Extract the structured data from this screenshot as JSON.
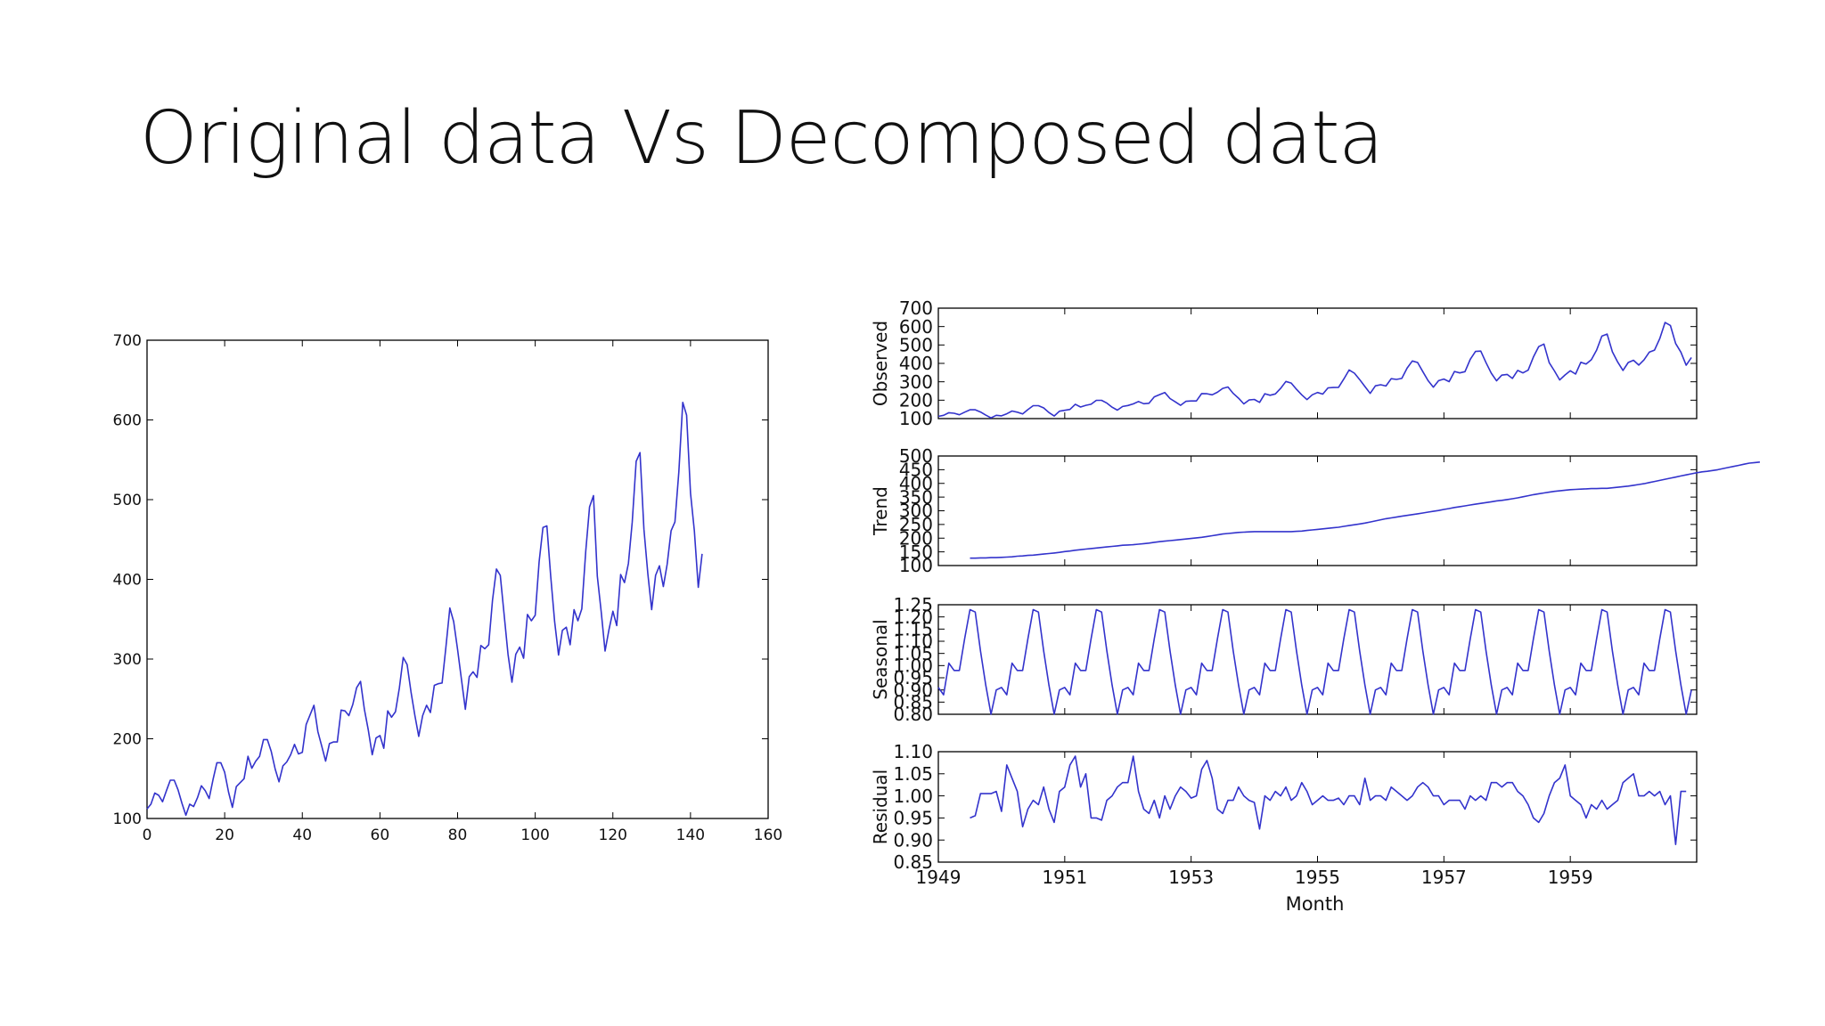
{
  "slide": {
    "title": "Original data Vs Decomposed data"
  },
  "chart_data": [
    {
      "type": "line",
      "title": "",
      "xlabel": "",
      "ylabel": "",
      "xlim": [
        0,
        160
      ],
      "ylim": [
        100,
        700
      ],
      "xticks": [
        0,
        20,
        40,
        60,
        80,
        100,
        120,
        140,
        160
      ],
      "yticks": [
        100,
        200,
        300,
        400,
        500,
        600,
        700
      ],
      "grid": false,
      "line_color": "#3333cc",
      "series": [
        {
          "values": [
            112,
            118,
            132,
            129,
            121,
            135,
            148,
            148,
            136,
            119,
            104,
            118,
            115,
            126,
            141,
            135,
            125,
            149,
            170,
            170,
            158,
            133,
            114,
            140,
            145,
            150,
            178,
            163,
            172,
            178,
            199,
            199,
            184,
            162,
            146,
            166,
            171,
            180,
            193,
            181,
            183,
            218,
            230,
            242,
            209,
            191,
            172,
            194,
            196,
            196,
            236,
            235,
            229,
            243,
            264,
            272,
            237,
            211,
            180,
            201,
            204,
            188,
            235,
            227,
            234,
            264,
            302,
            293,
            259,
            229,
            203,
            229,
            242,
            233,
            267,
            269,
            270,
            315,
            364,
            347,
            312,
            274,
            237,
            278,
            284,
            277,
            317,
            313,
            318,
            374,
            413,
            405,
            355,
            306,
            271,
            306,
            315,
            301,
            356,
            348,
            355,
            422,
            465,
            467,
            404,
            347,
            305,
            336,
            340,
            318,
            362,
            348,
            363,
            435,
            491,
            505,
            404,
            359,
            310,
            337,
            360,
            342,
            406,
            396,
            420,
            472,
            548,
            559,
            463,
            407,
            362,
            405,
            417,
            391,
            419,
            461,
            472,
            535,
            622,
            606,
            508,
            461,
            390,
            432
          ]
        }
      ]
    },
    {
      "type": "line",
      "title": "",
      "xlabel": "Month",
      "ylabel": "Observed",
      "x_start": "1949-01",
      "x_frequency": "monthly",
      "xlim": [
        1949,
        1961
      ],
      "xticks": [
        "1949",
        "1951",
        "1953",
        "1955",
        "1957",
        "1959"
      ],
      "ylim": [
        100,
        700
      ],
      "yticks": [
        100,
        200,
        300,
        400,
        500,
        600,
        700
      ],
      "grid": false,
      "line_color": "#3333cc",
      "series": [
        {
          "values": [
            112,
            118,
            132,
            129,
            121,
            135,
            148,
            148,
            136,
            119,
            104,
            118,
            115,
            126,
            141,
            135,
            125,
            149,
            170,
            170,
            158,
            133,
            114,
            140,
            145,
            150,
            178,
            163,
            172,
            178,
            199,
            199,
            184,
            162,
            146,
            166,
            171,
            180,
            193,
            181,
            183,
            218,
            230,
            242,
            209,
            191,
            172,
            194,
            196,
            196,
            236,
            235,
            229,
            243,
            264,
            272,
            237,
            211,
            180,
            201,
            204,
            188,
            235,
            227,
            234,
            264,
            302,
            293,
            259,
            229,
            203,
            229,
            242,
            233,
            267,
            269,
            270,
            315,
            364,
            347,
            312,
            274,
            237,
            278,
            284,
            277,
            317,
            313,
            318,
            374,
            413,
            405,
            355,
            306,
            271,
            306,
            315,
            301,
            356,
            348,
            355,
            422,
            465,
            467,
            404,
            347,
            305,
            336,
            340,
            318,
            362,
            348,
            363,
            435,
            491,
            505,
            404,
            359,
            310,
            337,
            360,
            342,
            406,
            396,
            420,
            472,
            548,
            559,
            463,
            407,
            362,
            405,
            417,
            391,
            419,
            461,
            472,
            535,
            622,
            606,
            508,
            461,
            390,
            432
          ]
        }
      ]
    },
    {
      "type": "line",
      "title": "",
      "xlabel": "Month",
      "ylabel": "Trend",
      "x_start": "1949-07",
      "x_frequency": "monthly",
      "xlim": [
        1949,
        1961
      ],
      "ylim": [
        100,
        500
      ],
      "yticks": [
        100,
        150,
        200,
        250,
        300,
        350,
        400,
        450,
        500
      ],
      "grid": false,
      "line_color": "#3333cc",
      "series": [
        {
          "values": [
            127,
            127,
            128,
            128,
            129,
            129,
            130,
            131,
            132,
            134,
            135,
            137,
            138,
            140,
            142,
            144,
            146,
            148,
            151,
            153,
            156,
            158,
            160,
            162,
            164,
            166,
            168,
            170,
            172,
            174,
            175,
            176,
            178,
            180,
            182,
            185,
            187,
            189,
            191,
            193,
            195,
            197,
            199,
            201,
            203,
            206,
            209,
            212,
            215,
            217,
            219,
            221,
            222,
            223,
            224,
            224,
            224,
            224,
            224,
            224,
            224,
            224,
            225,
            226,
            228,
            230,
            232,
            234,
            236,
            238,
            240,
            243,
            246,
            249,
            252,
            255,
            259,
            263,
            267,
            271,
            274,
            277,
            280,
            283,
            286,
            289,
            292,
            295,
            298,
            301,
            305,
            308,
            312,
            315,
            318,
            321,
            324,
            327,
            330,
            333,
            336,
            338,
            341,
            344,
            347,
            351,
            355,
            359,
            362,
            365,
            368,
            371,
            373,
            375,
            377,
            378,
            379,
            380,
            381,
            381,
            382,
            382,
            384,
            386,
            388,
            390,
            393,
            396,
            399,
            403,
            407,
            411,
            415,
            419,
            423,
            427,
            431,
            435,
            439,
            442,
            444,
            447,
            450,
            454,
            458,
            462,
            466,
            470,
            474,
            476,
            478
          ]
        }
      ]
    },
    {
      "type": "line",
      "title": "",
      "xlabel": "Month",
      "ylabel": "Seasonal",
      "x_start": "1949-01",
      "x_frequency": "monthly",
      "period_values": [
        0.91,
        0.88,
        1.01,
        0.98,
        0.98,
        1.11,
        1.23,
        1.22,
        1.06,
        0.92,
        0.8,
        0.9
      ],
      "repeats": 12,
      "xlim": [
        1949,
        1961
      ],
      "ylim": [
        0.8,
        1.25
      ],
      "yticks": [
        0.8,
        0.85,
        0.9,
        0.95,
        1.0,
        1.05,
        1.1,
        1.15,
        1.2,
        1.25
      ],
      "grid": false,
      "line_color": "#3333cc"
    },
    {
      "type": "line",
      "title": "",
      "xlabel": "Month",
      "ylabel": "Residual",
      "x_start": "1949-07",
      "x_frequency": "monthly",
      "xlim": [
        1949,
        1961
      ],
      "xticks": [
        "1949",
        "1951",
        "1953",
        "1955",
        "1957",
        "1959"
      ],
      "ylim": [
        0.85,
        1.1
      ],
      "yticks": [
        0.85,
        0.9,
        0.95,
        1.0,
        1.05,
        1.1
      ],
      "grid": false,
      "line_color": "#3333cc",
      "series": [
        {
          "values": [
            0.95,
            0.955,
            1.005,
            1.005,
            1.005,
            1.01,
            0.965,
            1.07,
            1.04,
            1.01,
            0.93,
            0.97,
            0.99,
            0.98,
            1.02,
            0.97,
            0.94,
            1.01,
            1.02,
            1.07,
            1.09,
            1.02,
            1.05,
            0.95,
            0.95,
            0.945,
            0.99,
            1.0,
            1.02,
            1.03,
            1.03,
            1.09,
            1.01,
            0.97,
            0.96,
            0.99,
            0.95,
            1.0,
            0.97,
            1.0,
            1.02,
            1.01,
            0.995,
            1.0,
            1.06,
            1.08,
            1.04,
            0.97,
            0.96,
            0.99,
            0.99,
            1.02,
            1.0,
            0.99,
            0.985,
            0.925,
            1.0,
            0.99,
            1.01,
            1.0,
            1.02,
            0.99,
            1.0,
            1.03,
            1.01,
            0.98,
            0.99,
            1.0,
            0.99,
            0.99,
            0.995,
            0.98,
            1.0,
            1.0,
            0.98,
            1.04,
            0.99,
            1.0,
            1.0,
            0.99,
            1.02,
            1.01,
            1.0,
            0.99,
            1.0,
            1.02,
            1.03,
            1.02,
            1.0,
            1.0,
            0.98,
            0.99,
            0.99,
            0.99,
            0.97,
            1.0,
            0.99,
            1.0,
            0.99,
            1.03,
            1.03,
            1.02,
            1.03,
            1.03,
            1.01,
            1.0,
            0.98,
            0.95,
            0.94,
            0.96,
            1.0,
            1.03,
            1.04,
            1.07,
            1.0,
            0.99,
            0.98,
            0.95,
            0.98,
            0.97,
            0.99,
            0.97,
            0.98,
            0.99,
            1.03,
            1.04,
            1.05,
            1.0,
            1.0,
            1.01,
            1.0,
            1.01,
            0.98,
            1.0,
            0.89,
            1.01,
            1.01
          ]
        }
      ]
    }
  ]
}
